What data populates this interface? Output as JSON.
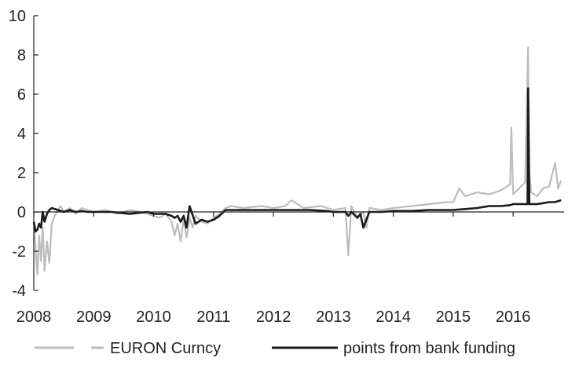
{
  "chart_data": {
    "type": "line",
    "title": "",
    "xlabel": "",
    "ylabel": "",
    "x_ticks": [
      "2008",
      "2009",
      "2010",
      "2011",
      "2012",
      "2013",
      "2014",
      "2015",
      "2016"
    ],
    "y_ticks": [
      "10",
      "8",
      "6",
      "4",
      "2",
      "0",
      "-2",
      "-4"
    ],
    "xlim": [
      2008,
      2016.85
    ],
    "ylim": [
      -4,
      10
    ],
    "grid": false,
    "legend_position": "bottom",
    "series": [
      {
        "name": "EURON Curncy",
        "color": "#bdbdbd",
        "style": "dashed-gray",
        "x": [
          2008.0,
          2008.03,
          2008.06,
          2008.09,
          2008.12,
          2008.15,
          2008.18,
          2008.22,
          2008.26,
          2008.3,
          2008.35,
          2008.4,
          2008.45,
          2008.5,
          2008.6,
          2008.7,
          2008.8,
          2008.9,
          2009.0,
          2009.2,
          2009.4,
          2009.6,
          2009.8,
          2010.0,
          2010.1,
          2010.2,
          2010.3,
          2010.35,
          2010.4,
          2010.45,
          2010.5,
          2010.55,
          2010.6,
          2010.65,
          2010.7,
          2010.8,
          2010.9,
          2011.0,
          2011.1,
          2011.2,
          2011.3,
          2011.5,
          2011.8,
          2012.0,
          2012.2,
          2012.3,
          2012.5,
          2012.8,
          2013.0,
          2013.2,
          2013.25,
          2013.3,
          2013.4,
          2013.5,
          2013.55,
          2013.6,
          2013.8,
          2014.0,
          2014.3,
          2014.6,
          2014.9,
          2015.0,
          2015.1,
          2015.2,
          2015.4,
          2015.6,
          2015.8,
          2015.95,
          2015.97,
          2016.0,
          2016.1,
          2016.2,
          2016.25,
          2016.27,
          2016.3,
          2016.4,
          2016.5,
          2016.6,
          2016.7,
          2016.75,
          2016.8
        ],
        "y": [
          -0.6,
          -1.8,
          -3.2,
          -1.2,
          -2.5,
          -0.8,
          -3.0,
          -1.5,
          -2.6,
          -0.6,
          -0.2,
          0.1,
          0.3,
          0.0,
          0.2,
          -0.1,
          0.2,
          0.1,
          0.0,
          0.1,
          -0.1,
          0.1,
          0.0,
          -0.2,
          -0.3,
          -0.1,
          -0.5,
          -1.2,
          -0.6,
          -1.5,
          -0.4,
          -1.3,
          -0.3,
          -0.8,
          -0.2,
          -0.5,
          -0.6,
          -0.3,
          -0.1,
          0.2,
          0.3,
          0.2,
          0.3,
          0.2,
          0.3,
          0.6,
          0.2,
          0.3,
          0.1,
          0.2,
          -2.2,
          0.3,
          -0.3,
          0.0,
          -0.8,
          0.2,
          0.1,
          0.2,
          0.3,
          0.4,
          0.5,
          0.5,
          1.2,
          0.8,
          1.0,
          0.9,
          1.1,
          1.4,
          4.3,
          0.9,
          1.2,
          1.5,
          8.4,
          2.0,
          1.0,
          0.8,
          1.2,
          1.3,
          2.5,
          1.2,
          1.6
        ]
      },
      {
        "name": "points from bank funding",
        "color": "#1a1a1a",
        "style": "solid-black",
        "x": [
          2008.0,
          2008.03,
          2008.06,
          2008.09,
          2008.12,
          2008.15,
          2008.18,
          2008.22,
          2008.26,
          2008.3,
          2008.4,
          2008.5,
          2008.6,
          2008.7,
          2008.8,
          2008.9,
          2009.0,
          2009.3,
          2009.6,
          2009.9,
          2010.0,
          2010.2,
          2010.3,
          2010.35,
          2010.4,
          2010.45,
          2010.5,
          2010.55,
          2010.6,
          2010.7,
          2010.8,
          2010.9,
          2011.0,
          2011.1,
          2011.2,
          2011.4,
          2011.6,
          2011.8,
          2012.0,
          2012.3,
          2012.6,
          2012.9,
          2013.0,
          2013.2,
          2013.25,
          2013.3,
          2013.4,
          2013.45,
          2013.5,
          2013.6,
          2013.8,
          2014.0,
          2014.3,
          2014.6,
          2014.9,
          2015.0,
          2015.2,
          2015.4,
          2015.6,
          2015.8,
          2015.95,
          2016.0,
          2016.1,
          2016.2,
          2016.24,
          2016.25,
          2016.27,
          2016.3,
          2016.4,
          2016.5,
          2016.6,
          2016.7,
          2016.8
        ],
        "y": [
          -0.5,
          -1.0,
          -0.9,
          -0.6,
          -0.8,
          0.0,
          -0.5,
          -0.1,
          0.1,
          0.2,
          0.1,
          0.0,
          0.1,
          0.0,
          0.05,
          0.0,
          0.0,
          0.0,
          -0.1,
          0.0,
          -0.1,
          -0.1,
          -0.2,
          -0.3,
          -0.2,
          -0.5,
          -0.2,
          -0.8,
          0.3,
          -0.6,
          -0.4,
          -0.5,
          -0.4,
          -0.2,
          0.1,
          0.1,
          0.1,
          0.1,
          0.1,
          0.1,
          0.1,
          0.05,
          0.0,
          0.0,
          -0.2,
          0.0,
          -0.3,
          -0.1,
          -0.8,
          0.0,
          0.0,
          0.05,
          0.05,
          0.1,
          0.1,
          0.1,
          0.15,
          0.2,
          0.3,
          0.3,
          0.35,
          0.4,
          0.4,
          0.4,
          0.4,
          6.3,
          0.4,
          0.4,
          0.4,
          0.45,
          0.5,
          0.5,
          0.6
        ]
      }
    ]
  }
}
